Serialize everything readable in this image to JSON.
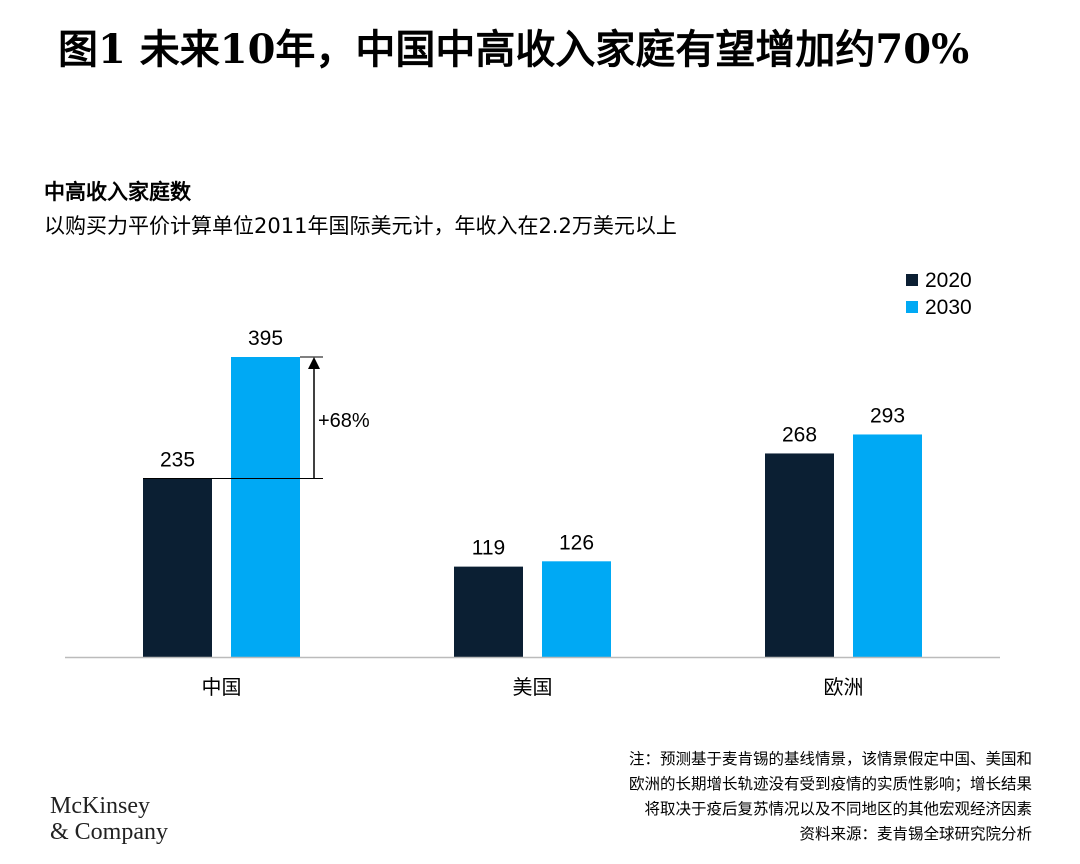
{
  "title": "图1 未来10年，中国中高收入家庭有望增加约70%",
  "chart_data": {
    "type": "bar",
    "title": "中高收入家庭数",
    "subtitle": "以购买力平价计算单位2011年国际美元计，年收入在2.2万美元以上",
    "categories": [
      "中国",
      "美国",
      "欧洲"
    ],
    "series": [
      {
        "name": "2020",
        "values": [
          235,
          119,
          268
        ],
        "color": "#0b1f33"
      },
      {
        "name": "2030",
        "values": [
          395,
          126,
          293
        ],
        "color": "#00a9f4"
      }
    ],
    "ylim": [
      0,
      395
    ],
    "grid": false,
    "legend": "top-right",
    "annotation": {
      "label": "+68%",
      "category": "中国",
      "from": 235,
      "to": 395
    }
  },
  "notes": [
    "注：预测基于麦肯锡的基线情景，该情景假定中国、美国和",
    "欧洲的长期增长轨迹没有受到疫情的实质性影响；增长结果",
    "将取决于疫后复苏情况以及不同地区的其他宏观经济因素",
    "资料来源：麦肯锡全球研究院分析"
  ],
  "logo": [
    "McKinsey",
    "& Company"
  ]
}
